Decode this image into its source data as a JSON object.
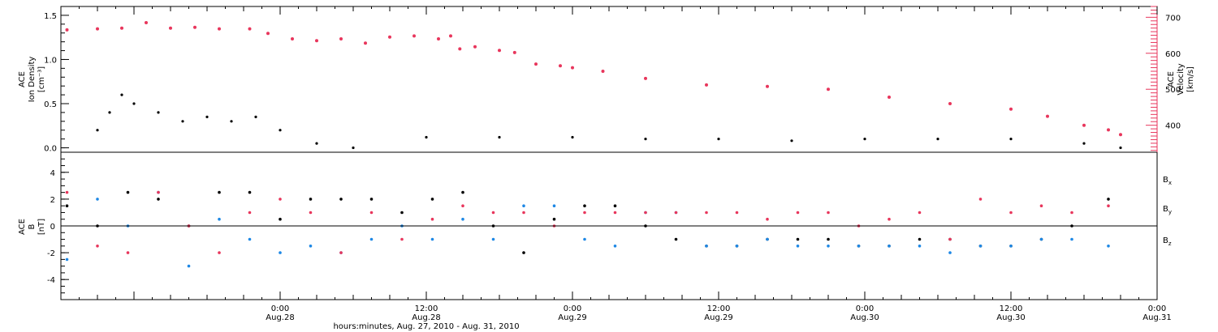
{
  "chart_data": [
    {
      "type": "scatter",
      "panel": "top",
      "ylabel_left": [
        "ACE",
        "Ion Density",
        "[cm⁻³]"
      ],
      "ylabel_right": [
        "ACE",
        "Velocity",
        "[km/s]"
      ],
      "y_left_ticks": [
        "0.0",
        "0.5",
        "1.0",
        "1.5"
      ],
      "y_left_lim": [
        -0.05,
        1.6
      ],
      "y_right_ticks": [
        "400",
        "500",
        "600",
        "700"
      ],
      "y_right_lim": [
        325,
        730
      ],
      "colors": {
        "density": "#000000",
        "velocity": "#e8365c"
      },
      "series": [
        {
          "role": "density",
          "hours": [
            -30,
            -28,
            -26,
            -24,
            -20,
            -16,
            -12,
            -8,
            -4,
            0,
            6,
            12,
            24,
            36,
            48,
            60,
            72,
            84,
            96,
            108,
            120,
            132,
            138
          ],
          "values": [
            0.2,
            0.4,
            0.6,
            0.5,
            0.4,
            0.3,
            0.35,
            0.3,
            0.35,
            0.2,
            0.05,
            0.0,
            0.12,
            0.12,
            0.12,
            0.1,
            0.1,
            0.08,
            0.1,
            0.1,
            0.1,
            0.05,
            0.0
          ]
        },
        {
          "role": "velocity",
          "hours": [
            -35,
            -30,
            -26,
            -22,
            -18,
            -14,
            -10,
            -5,
            -2,
            2,
            6,
            10,
            14,
            18,
            22,
            26,
            28,
            29.5,
            32,
            36,
            38.5,
            42,
            46,
            48,
            53,
            60,
            70,
            80,
            90,
            100,
            110,
            120,
            126,
            132,
            136,
            138
          ],
          "values": [
            665,
            668,
            670,
            685,
            670,
            672,
            668,
            668,
            655,
            640,
            635,
            640,
            628,
            645,
            648,
            640,
            648,
            612,
            618,
            608,
            602,
            570,
            565,
            560,
            550,
            530,
            512,
            508,
            500,
            478,
            460,
            445,
            425,
            400,
            387,
            374
          ]
        }
      ]
    },
    {
      "type": "scatter",
      "panel": "bottom",
      "ylabel": [
        "ACE",
        "B",
        "[nT]"
      ],
      "y_ticks": [
        "-4",
        "-2",
        "0",
        "2",
        "4"
      ],
      "ylim": [
        -5.5,
        5.5
      ],
      "colors": {
        "Bx": "#000000",
        "By": "#1e88e5",
        "Bz": "#e8365c"
      },
      "series": [
        {
          "name": "B",
          "sub": "x",
          "color_key": "Bx",
          "hours": [
            -35,
            -30,
            -25,
            -20,
            -15,
            -10,
            -5,
            0,
            5,
            10,
            15,
            20,
            25,
            30,
            35,
            40,
            45,
            50,
            55,
            60,
            65,
            70,
            75,
            80,
            85,
            90,
            95,
            100,
            105,
            110,
            115,
            120,
            125,
            130,
            136
          ],
          "values": [
            1.5,
            0.0,
            2.5,
            2.0,
            0.0,
            2.5,
            2.5,
            0.5,
            2.0,
            2.0,
            2.0,
            1.0,
            2.0,
            2.5,
            0.0,
            -2.0,
            0.5,
            1.5,
            1.5,
            0.0,
            -1.0,
            -1.5,
            -1.5,
            -1.0,
            -1.0,
            -1.0,
            -1.5,
            -1.5,
            -1.0,
            -1.0,
            -1.5,
            -1.5,
            -1.0,
            0.0,
            2.0
          ]
        },
        {
          "name": "B",
          "sub": "y",
          "color_key": "By",
          "hours": [
            -35,
            -30,
            -25,
            -20,
            -15,
            -10,
            -5,
            0,
            5,
            10,
            15,
            20,
            25,
            30,
            35,
            40,
            45,
            50,
            55,
            60,
            65,
            70,
            75,
            80,
            85,
            90,
            95,
            100,
            105,
            110,
            115,
            120,
            125,
            130,
            136
          ],
          "values": [
            -2.5,
            2.0,
            0.0,
            2.5,
            -3.0,
            0.5,
            -1.0,
            -2.0,
            -1.5,
            -2.0,
            -1.0,
            0.0,
            -1.0,
            0.5,
            -1.0,
            1.5,
            1.5,
            -1.0,
            -1.5,
            1.0,
            1.0,
            -1.5,
            -1.5,
            -1.0,
            -1.5,
            -1.5,
            -1.5,
            -1.5,
            -1.5,
            -2.0,
            -1.5,
            -1.5,
            -1.0,
            -1.0,
            -1.5
          ]
        },
        {
          "name": "B",
          "sub": "z",
          "color_key": "Bz",
          "hours": [
            -35,
            -30,
            -25,
            -20,
            -15,
            -10,
            -5,
            0,
            5,
            10,
            15,
            20,
            25,
            30,
            35,
            40,
            45,
            50,
            55,
            60,
            65,
            70,
            75,
            80,
            85,
            90,
            95,
            100,
            105,
            110,
            115,
            120,
            125,
            130,
            136
          ],
          "values": [
            2.5,
            -1.5,
            -2.0,
            2.5,
            0.0,
            -2.0,
            1.0,
            2.0,
            1.0,
            -2.0,
            1.0,
            -1.0,
            0.5,
            1.5,
            1.0,
            1.0,
            0.0,
            1.0,
            1.0,
            1.0,
            1.0,
            1.0,
            1.0,
            0.5,
            1.0,
            1.0,
            0.0,
            0.5,
            1.0,
            -1.0,
            2.0,
            1.0,
            1.5,
            1.0,
            1.5
          ]
        }
      ]
    }
  ],
  "x_axis": {
    "xlim_hours": [
      -36,
      144
    ],
    "ticks": [
      {
        "hour": 0,
        "time": "0:00",
        "date": "Aug.28"
      },
      {
        "hour": 24,
        "time": "12:00",
        "date": "Aug.28"
      },
      {
        "hour": 48,
        "time": "0:00",
        "date": "Aug.29"
      },
      {
        "hour": 72,
        "time": "12:00",
        "date": "Aug.29"
      },
      {
        "hour": 96,
        "time": "0:00",
        "date": "Aug.30"
      },
      {
        "hour": 120,
        "time": "12:00",
        "date": "Aug.30"
      },
      {
        "hour": 144,
        "time": "0:00",
        "date": "Aug.31"
      }
    ],
    "title": "hours:minutes, Aug. 27, 2010 - Aug. 31, 2010"
  }
}
